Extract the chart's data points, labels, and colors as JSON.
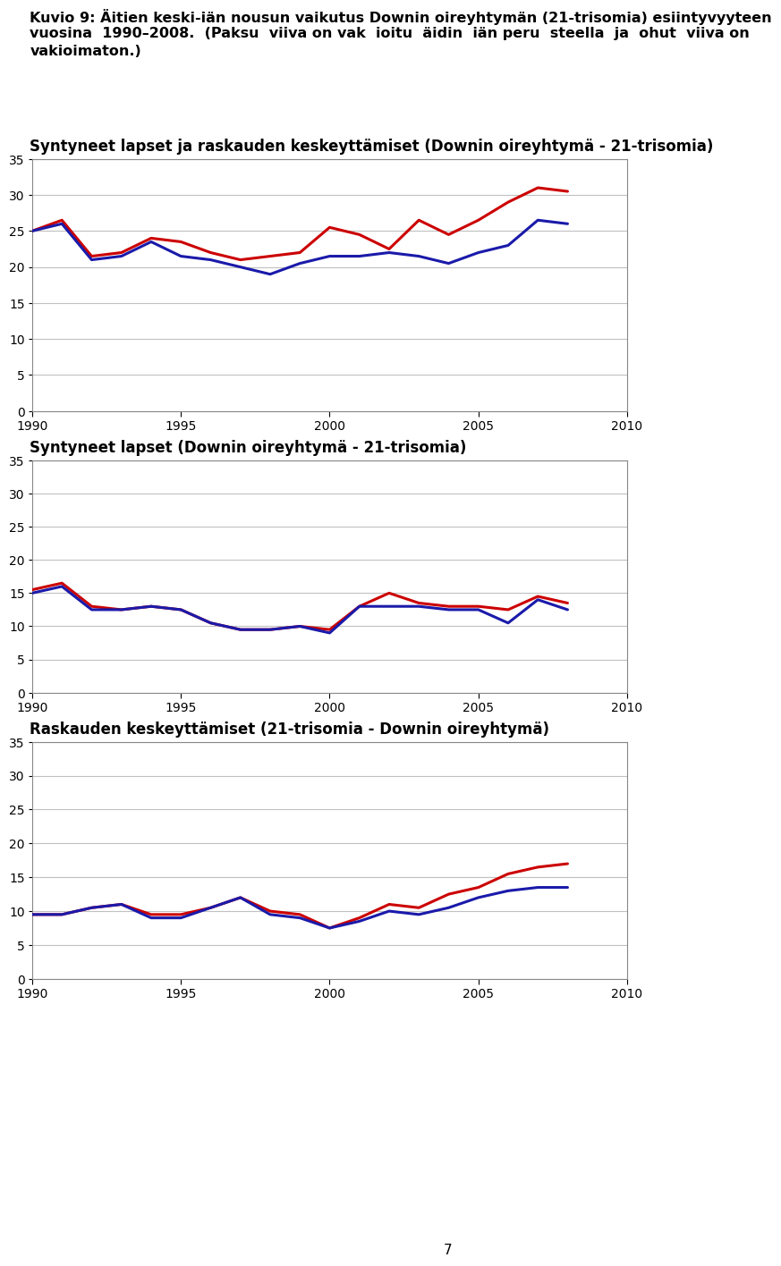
{
  "title_line1": "Kuvio 9: Äitien keski-iän nousun vaikutus Downin oireyhtymän (21-trisomia) esiintyvyyteen",
  "title_line2": "vuosina  1990–2008.  (Paksu  viiva on vak  ioitu  äidin  iän peru  steella  ja  ohut  viiva on",
  "title_line3": "vakioimaton.)",
  "subtitle1": "Syntyneet lapset ja raskauden keskeyttämiset (Downin oireyhtymä - 21-trisomia)",
  "subtitle2": "Syntyneet lapset (Downin oireyhtymä - 21-trisomia)",
  "subtitle3": "Raskauden keskeyttämiset (21-trisomia - Downin oireyhtymä)",
  "page_number": "7",
  "years": [
    1990,
    1991,
    1992,
    1993,
    1994,
    1995,
    1996,
    1997,
    1998,
    1999,
    2000,
    2001,
    2002,
    2003,
    2004,
    2005,
    2006,
    2007,
    2008
  ],
  "chart1_red": [
    25.0,
    26.5,
    21.5,
    22.0,
    24.0,
    23.5,
    22.0,
    21.0,
    21.5,
    22.0,
    25.5,
    24.5,
    22.5,
    26.5,
    24.5,
    26.5,
    29.0,
    31.0,
    30.5
  ],
  "chart1_blue": [
    25.0,
    26.0,
    21.0,
    21.5,
    23.5,
    21.5,
    21.0,
    20.0,
    19.0,
    20.5,
    21.5,
    21.5,
    22.0,
    21.5,
    20.5,
    22.0,
    23.0,
    26.5,
    26.0
  ],
  "chart2_red": [
    15.5,
    16.5,
    13.0,
    12.5,
    13.0,
    12.5,
    10.5,
    9.5,
    9.5,
    10.0,
    9.5,
    13.0,
    15.0,
    13.5,
    13.0,
    13.0,
    12.5,
    14.5,
    13.5
  ],
  "chart2_blue": [
    15.0,
    16.0,
    12.5,
    12.5,
    13.0,
    12.5,
    10.5,
    9.5,
    9.5,
    10.0,
    9.0,
    13.0,
    13.0,
    13.0,
    12.5,
    12.5,
    10.5,
    14.0,
    12.5
  ],
  "chart3_red": [
    9.5,
    9.5,
    10.5,
    11.0,
    9.5,
    9.5,
    10.5,
    12.0,
    10.0,
    9.5,
    7.5,
    9.0,
    11.0,
    10.5,
    12.5,
    13.5,
    15.5,
    16.5,
    17.0
  ],
  "chart3_blue": [
    9.5,
    9.5,
    10.5,
    11.0,
    9.0,
    9.0,
    10.5,
    12.0,
    9.5,
    9.0,
    7.5,
    8.5,
    10.0,
    9.5,
    10.5,
    12.0,
    13.0,
    13.5,
    13.5
  ],
  "ylim": [
    0,
    35
  ],
  "yticks": [
    0,
    5,
    10,
    15,
    20,
    25,
    30,
    35
  ],
  "xlim_left": 1990,
  "xlim_right": 2010,
  "xticks": [
    1990,
    1995,
    2000,
    2005,
    2010
  ],
  "red_color": "#cc0000",
  "blue_color": "#1a1aaa",
  "grid_color": "#c0c0c0",
  "spine_color": "#888888",
  "bg_color": "#ffffff",
  "title_fontsize": 11.5,
  "subtitle_fontsize": 12,
  "tick_fontsize": 10,
  "line_width": 2.2
}
